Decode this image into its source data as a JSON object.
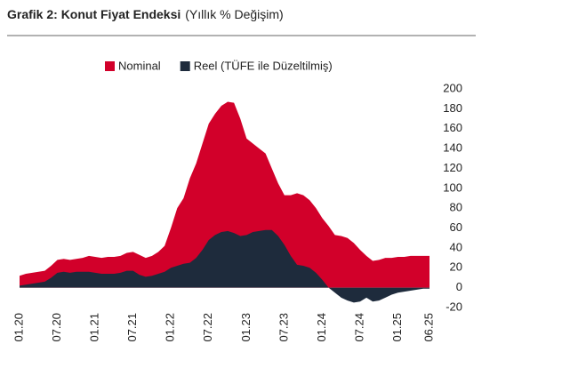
{
  "chart_data": {
    "type": "area",
    "title": "Grafik 2: Konut Fiyat Endeksi",
    "subtitle": "(Yıllık % Değişim)",
    "categories": [
      "01.20",
      null,
      null,
      null,
      null,
      null,
      "07.20",
      null,
      null,
      null,
      null,
      null,
      "01.21",
      null,
      null,
      null,
      null,
      null,
      "07.21",
      null,
      null,
      null,
      null,
      null,
      "01.22",
      null,
      null,
      null,
      null,
      null,
      "07.22",
      null,
      null,
      null,
      null,
      null,
      "01.23",
      null,
      null,
      null,
      null,
      null,
      "07.23",
      null,
      null,
      null,
      null,
      null,
      "01.24",
      null,
      null,
      null,
      null,
      null,
      "07.24",
      null,
      null,
      null,
      null,
      null,
      "01.25",
      null,
      null,
      null,
      null,
      "06.25"
    ],
    "series": [
      {
        "name": "Nominal",
        "color": "#d2002a",
        "values": [
          12,
          14,
          15,
          16,
          17,
          22,
          28,
          29,
          28,
          29,
          30,
          32,
          31,
          30,
          31,
          31,
          32,
          35,
          36,
          33,
          30,
          32,
          36,
          42,
          60,
          80,
          90,
          110,
          125,
          145,
          165,
          175,
          183,
          187,
          186,
          170,
          150,
          145,
          140,
          135,
          120,
          105,
          93,
          93,
          95,
          93,
          88,
          80,
          70,
          62,
          53,
          52,
          50,
          45,
          38,
          32,
          27,
          28,
          30,
          30,
          31,
          31,
          32,
          32,
          32,
          32
        ]
      },
      {
        "name": "Reel (TÜFE ile Düzeltilmiş)",
        "color": "#1e2b3c",
        "values": [
          2,
          3,
          4,
          5,
          6,
          10,
          15,
          16,
          15,
          16,
          16,
          16,
          15,
          14,
          14,
          14,
          15,
          17,
          17,
          13,
          11,
          12,
          14,
          16,
          20,
          22,
          24,
          25,
          30,
          38,
          48,
          53,
          56,
          57,
          55,
          52,
          53,
          56,
          57,
          58,
          58,
          52,
          43,
          32,
          23,
          22,
          20,
          15,
          8,
          0,
          -5,
          -10,
          -13,
          -15,
          -14,
          -10,
          -14,
          -13,
          -10,
          -7,
          -5,
          -4,
          -3,
          -2,
          -1,
          -1
        ]
      }
    ],
    "ylim": [
      -20,
      200
    ],
    "yticks": [
      -20,
      0,
      20,
      40,
      60,
      80,
      100,
      120,
      140,
      160,
      180,
      200
    ]
  }
}
